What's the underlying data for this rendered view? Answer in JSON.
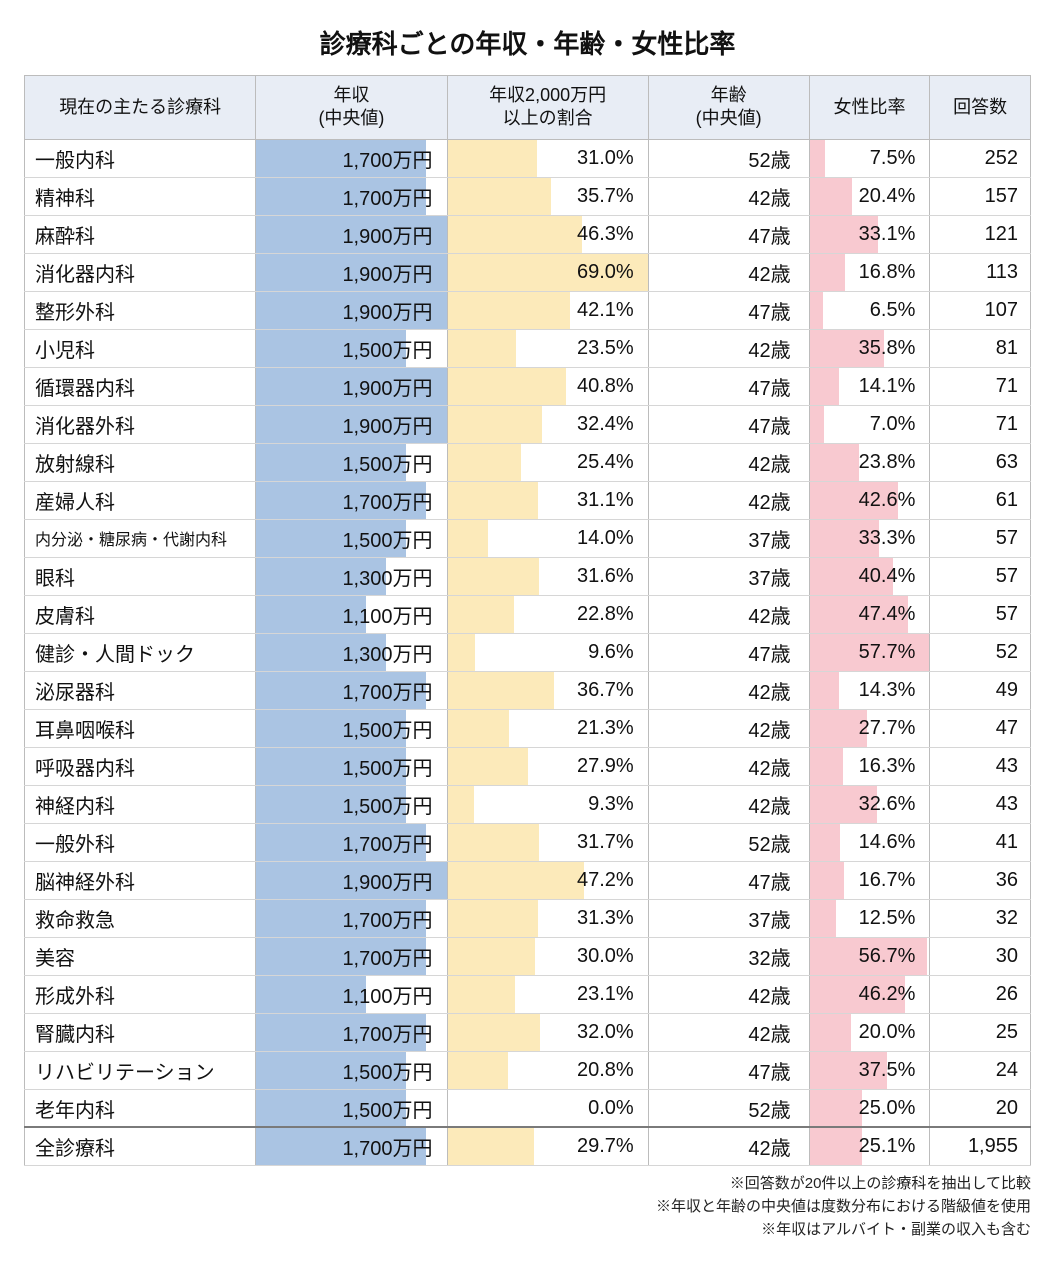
{
  "title": "診療科ごとの年収・年齢・女性比率",
  "columns": [
    "現在の主たる診療科",
    "年収\n(中央値)",
    "年収2,000万円\n以上の割合",
    "年齢\n(中央値)",
    "女性比率",
    "回答数"
  ],
  "bar_colors": {
    "income": "#aac4e3",
    "ratio": "#fceaba",
    "female": "#f8c9d0"
  },
  "bar_max": {
    "income": 1900,
    "ratio": 69.0,
    "female": 57.7
  },
  "header_bg": "#e8edf5",
  "rows": [
    {
      "dept": "一般内科",
      "income": 1700,
      "ratio": 31.0,
      "age": 52,
      "female": 7.5,
      "count": 252
    },
    {
      "dept": "精神科",
      "income": 1700,
      "ratio": 35.7,
      "age": 42,
      "female": 20.4,
      "count": 157
    },
    {
      "dept": "麻酔科",
      "income": 1900,
      "ratio": 46.3,
      "age": 47,
      "female": 33.1,
      "count": 121
    },
    {
      "dept": "消化器内科",
      "income": 1900,
      "ratio": 69.0,
      "age": 42,
      "female": 16.8,
      "count": 113
    },
    {
      "dept": "整形外科",
      "income": 1900,
      "ratio": 42.1,
      "age": 47,
      "female": 6.5,
      "count": 107
    },
    {
      "dept": "小児科",
      "income": 1500,
      "ratio": 23.5,
      "age": 42,
      "female": 35.8,
      "count": 81
    },
    {
      "dept": "循環器内科",
      "income": 1900,
      "ratio": 40.8,
      "age": 47,
      "female": 14.1,
      "count": 71
    },
    {
      "dept": "消化器外科",
      "income": 1900,
      "ratio": 32.4,
      "age": 47,
      "female": 7.0,
      "count": 71
    },
    {
      "dept": "放射線科",
      "income": 1500,
      "ratio": 25.4,
      "age": 42,
      "female": 23.8,
      "count": 63
    },
    {
      "dept": "産婦人科",
      "income": 1700,
      "ratio": 31.1,
      "age": 42,
      "female": 42.6,
      "count": 61
    },
    {
      "dept": "内分泌・糖尿病・代謝内科",
      "income": 1500,
      "ratio": 14.0,
      "age": 37,
      "female": 33.3,
      "count": 57,
      "small": true
    },
    {
      "dept": "眼科",
      "income": 1300,
      "ratio": 31.6,
      "age": 37,
      "female": 40.4,
      "count": 57
    },
    {
      "dept": "皮膚科",
      "income": 1100,
      "ratio": 22.8,
      "age": 42,
      "female": 47.4,
      "count": 57
    },
    {
      "dept": "健診・人間ドック",
      "income": 1300,
      "ratio": 9.6,
      "age": 47,
      "female": 57.7,
      "count": 52
    },
    {
      "dept": "泌尿器科",
      "income": 1700,
      "ratio": 36.7,
      "age": 42,
      "female": 14.3,
      "count": 49
    },
    {
      "dept": "耳鼻咽喉科",
      "income": 1500,
      "ratio": 21.3,
      "age": 42,
      "female": 27.7,
      "count": 47
    },
    {
      "dept": "呼吸器内科",
      "income": 1500,
      "ratio": 27.9,
      "age": 42,
      "female": 16.3,
      "count": 43
    },
    {
      "dept": "神経内科",
      "income": 1500,
      "ratio": 9.3,
      "age": 42,
      "female": 32.6,
      "count": 43
    },
    {
      "dept": "一般外科",
      "income": 1700,
      "ratio": 31.7,
      "age": 52,
      "female": 14.6,
      "count": 41
    },
    {
      "dept": "脳神経外科",
      "income": 1900,
      "ratio": 47.2,
      "age": 47,
      "female": 16.7,
      "count": 36
    },
    {
      "dept": "救命救急",
      "income": 1700,
      "ratio": 31.3,
      "age": 37,
      "female": 12.5,
      "count": 32
    },
    {
      "dept": "美容",
      "income": 1700,
      "ratio": 30.0,
      "age": 32,
      "female": 56.7,
      "count": 30
    },
    {
      "dept": "形成外科",
      "income": 1100,
      "ratio": 23.1,
      "age": 42,
      "female": 46.2,
      "count": 26
    },
    {
      "dept": "腎臓内科",
      "income": 1700,
      "ratio": 32.0,
      "age": 42,
      "female": 20.0,
      "count": 25
    },
    {
      "dept": "リハビリテーション",
      "income": 1500,
      "ratio": 20.8,
      "age": 47,
      "female": 37.5,
      "count": 24
    },
    {
      "dept": "老年内科",
      "income": 1500,
      "ratio": 0.0,
      "age": 52,
      "female": 25.0,
      "count": 20
    }
  ],
  "total": {
    "dept": "全診療科",
    "income": 1700,
    "ratio": 29.7,
    "age": 42,
    "female": 25.1,
    "count": 1955
  },
  "notes": [
    "※回答数が20件以上の診療科を抽出して比較",
    "※年収と年齢の中央値は度数分布における階級値を使用",
    "※年収はアルバイト・副業の収入も含む"
  ]
}
